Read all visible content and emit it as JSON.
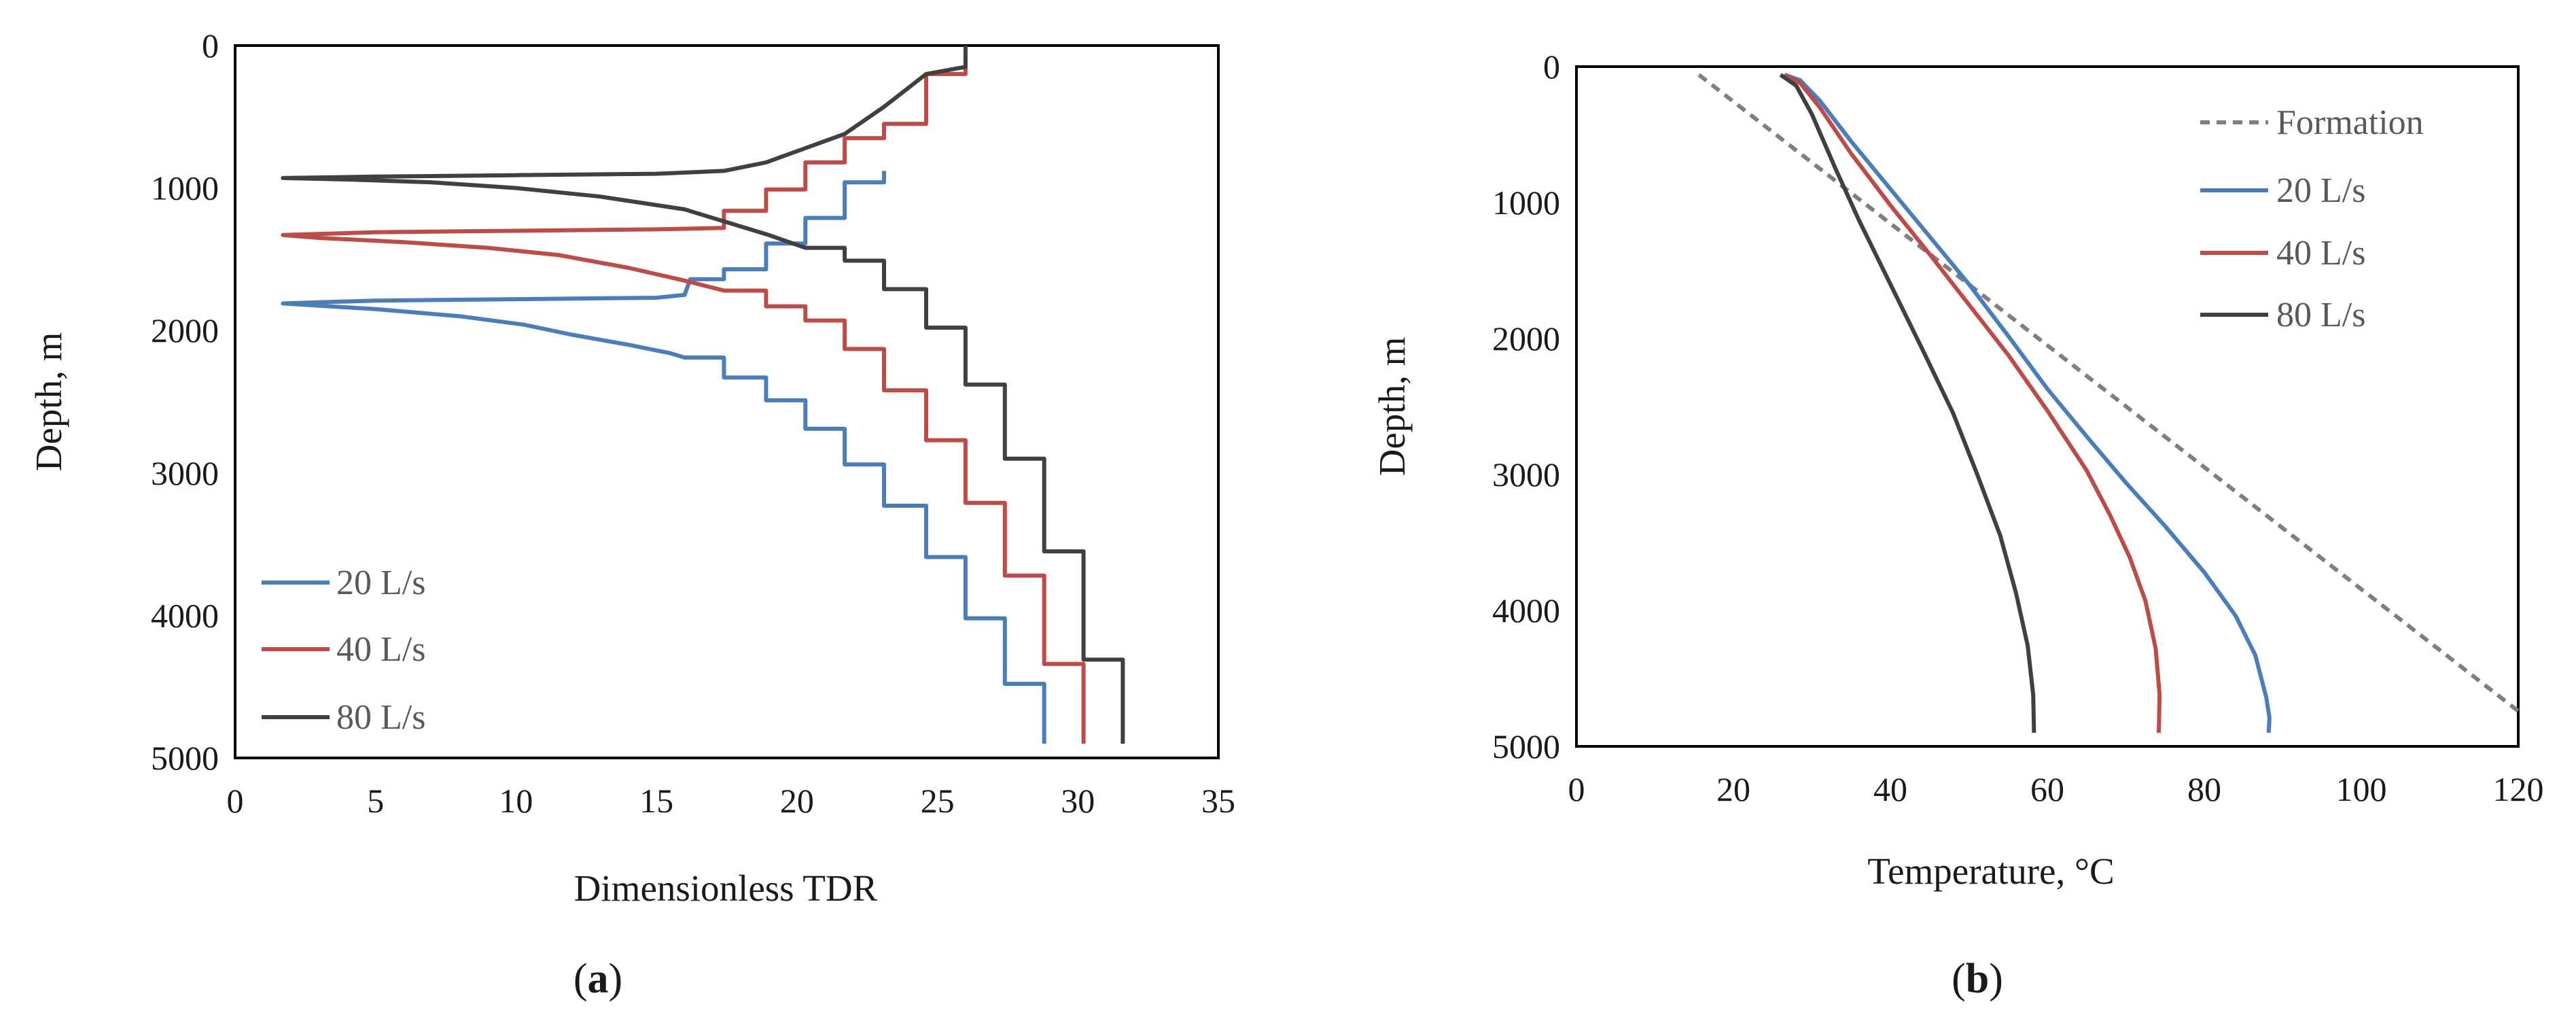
{
  "chart_data": [
    {
      "type": "line",
      "panel_label": "a",
      "xlabel": "Dimensionless  TDR",
      "ylabel": "Depth, m",
      "xlim": [
        0,
        35
      ],
      "ylim": [
        0,
        5000
      ],
      "y_inverted": true,
      "x_ticks": [
        "0",
        "5",
        "10",
        "15",
        "20",
        "25",
        "30",
        "35"
      ],
      "y_ticks": [
        "0",
        "1000",
        "2000",
        "3000",
        "4000",
        "5000"
      ],
      "legend_position": "bottom-left",
      "series": [
        {
          "name": "20 L/s",
          "color": "#4a7ebb",
          "dash": "",
          "x": [
            28.8,
            28.8,
            27.4,
            27.4,
            26.0,
            26.0,
            24.6,
            24.6,
            23.1,
            23.1,
            21.7,
            21.7,
            20.3,
            20.3,
            18.9,
            18.9,
            17.4,
            17.4,
            16.0,
            15.5,
            14.0,
            12.0,
            10.3,
            8.0,
            5.0,
            1.7,
            5.0,
            10.0,
            15.0,
            16.0,
            16.2,
            17.4,
            17.4,
            18.9,
            18.9,
            20.3,
            20.3,
            21.7,
            21.7,
            23.1,
            23.1
          ],
          "y": [
            4900,
            4480,
            4480,
            4020,
            4020,
            3590,
            3590,
            3230,
            3230,
            2940,
            2940,
            2690,
            2690,
            2490,
            2490,
            2330,
            2330,
            2190,
            2190,
            2160,
            2100,
            2030,
            1960,
            1900,
            1850,
            1810,
            1790,
            1780,
            1770,
            1750,
            1640,
            1640,
            1570,
            1570,
            1390,
            1390,
            1210,
            1210,
            960,
            960,
            880
          ]
        },
        {
          "name": "40 L/s",
          "color": "#be4b48",
          "dash": "",
          "x": [
            30.2,
            30.2,
            28.8,
            28.8,
            27.4,
            27.4,
            26.0,
            26.0,
            24.6,
            24.6,
            23.1,
            23.1,
            21.7,
            21.7,
            20.3,
            20.3,
            18.9,
            18.9,
            17.4,
            16.0,
            14.0,
            11.5,
            9.0,
            6.0,
            3.0,
            1.7,
            5.0,
            10.0,
            15.0,
            17.4,
            17.4,
            18.9,
            18.9,
            20.3,
            20.3,
            21.7,
            21.7,
            23.1,
            23.1,
            24.6,
            24.6,
            26.0,
            26.0
          ],
          "y": [
            4900,
            4340,
            4340,
            3720,
            3720,
            3210,
            3210,
            2770,
            2770,
            2420,
            2420,
            2130,
            2130,
            1930,
            1930,
            1830,
            1830,
            1720,
            1720,
            1650,
            1560,
            1470,
            1420,
            1380,
            1350,
            1330,
            1310,
            1300,
            1290,
            1280,
            1160,
            1160,
            1010,
            1010,
            820,
            820,
            650,
            650,
            550,
            550,
            200,
            200,
            100
          ]
        },
        {
          "name": "80 L/s",
          "color": "#404040",
          "dash": "",
          "x": [
            31.6,
            31.6,
            30.2,
            30.2,
            28.8,
            28.8,
            27.4,
            27.4,
            26.0,
            26.0,
            24.6,
            24.6,
            23.1,
            23.1,
            21.7,
            21.7,
            20.3,
            19.0,
            17.5,
            16.0,
            13.0,
            10.0,
            7.0,
            4.0,
            1.7,
            5.0,
            10.0,
            15.0,
            17.4,
            18.9,
            18.9,
            20.3,
            20.3,
            21.7,
            21.7,
            23.1,
            23.1,
            24.6,
            24.6,
            26.0,
            26.0
          ],
          "y": [
            4900,
            4310,
            4310,
            3550,
            3550,
            2900,
            2900,
            2380,
            2380,
            1980,
            1980,
            1710,
            1710,
            1510,
            1510,
            1420,
            1420,
            1330,
            1240,
            1150,
            1060,
            1000,
            960,
            940,
            930,
            920,
            910,
            900,
            880,
            820,
            820,
            720,
            720,
            620,
            620,
            430,
            430,
            200,
            200,
            150,
            0
          ]
        }
      ]
    },
    {
      "type": "line",
      "panel_label": "b",
      "xlabel": "Temperature,  °C",
      "ylabel": "Depth, m",
      "xlim": [
        0,
        120
      ],
      "ylim": [
        0,
        5000
      ],
      "y_inverted": true,
      "x_ticks": [
        "0",
        "20",
        "40",
        "60",
        "80",
        "100",
        "120"
      ],
      "y_ticks": [
        "0",
        "1000",
        "2000",
        "3000",
        "4000",
        "5000"
      ],
      "legend_position": "top-right",
      "series": [
        {
          "name": "Formation",
          "color": "#7f7f7f",
          "dash": "dashed",
          "x": [
            15.6,
            120
          ],
          "y": [
            60,
            4740
          ]
        },
        {
          "name": "20 L/s",
          "color": "#4a7ebb",
          "dash": "",
          "x": [
            26.5,
            28.5,
            31,
            35,
            40,
            45,
            50,
            55,
            60,
            65,
            70,
            75,
            80,
            84,
            86.5,
            87.9,
            88.3,
            88.2
          ],
          "y": [
            60,
            100,
            250,
            550,
            900,
            1250,
            1600,
            1980,
            2370,
            2720,
            3060,
            3380,
            3720,
            4040,
            4330,
            4640,
            4790,
            4900
          ]
        },
        {
          "name": "40 L/s",
          "color": "#be4b48",
          "dash": "",
          "x": [
            26.5,
            28.5,
            31,
            35,
            40,
            45,
            50,
            55,
            60,
            65,
            68,
            70.5,
            72.5,
            73.8,
            74.3,
            74.2
          ],
          "y": [
            60,
            120,
            300,
            640,
            1020,
            1380,
            1750,
            2120,
            2530,
            2970,
            3300,
            3610,
            3930,
            4280,
            4620,
            4900
          ]
        },
        {
          "name": "80 L/s",
          "color": "#404040",
          "dash": "",
          "x": [
            26,
            28,
            30,
            33,
            36,
            40,
            44,
            48,
            51,
            54,
            56,
            57.5,
            58.2,
            58.3
          ],
          "y": [
            60,
            140,
            350,
            750,
            1130,
            1600,
            2070,
            2550,
            2990,
            3450,
            3870,
            4260,
            4620,
            4900
          ]
        }
      ]
    }
  ],
  "captions": {
    "a": {
      "open": "(",
      "letter": "a",
      "close": ")"
    },
    "b": {
      "open": "(",
      "letter": "b",
      "close": ")"
    }
  }
}
